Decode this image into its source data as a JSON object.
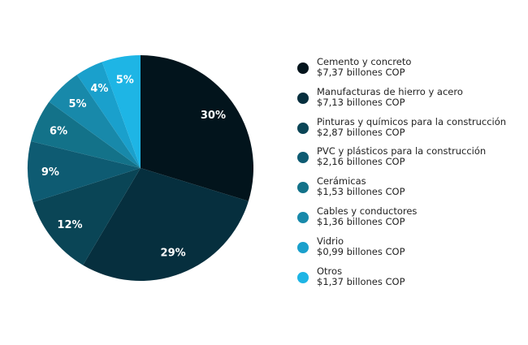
{
  "chart_data": {
    "type": "pie",
    "start": "top",
    "direction": "clockwise",
    "legend_position": "right",
    "slices": [
      {
        "name": "Cemento y concreto",
        "value_label": "$7,37 billones COP",
        "value": 7.37,
        "percent_label": "30%",
        "color": "#02141c"
      },
      {
        "name": "Manufacturas de hierro y acero",
        "value_label": "$7,13 billones COP",
        "value": 7.13,
        "percent_label": "29%",
        "color": "#062f3e"
      },
      {
        "name": "Pinturas y químicos para la construcción",
        "value_label": "$2,87 billones COP",
        "value": 2.87,
        "percent_label": "12%",
        "color": "#0a4556"
      },
      {
        "name": "PVC y plásticos para la construcción",
        "value_label": "$2,16 billones COP",
        "value": 2.16,
        "percent_label": "9%",
        "color": "#0e5b72"
      },
      {
        "name": "Cerámicas",
        "value_label": "$1,53 billones COP",
        "value": 1.53,
        "percent_label": "6%",
        "color": "#137289"
      },
      {
        "name": "Cables y conductores",
        "value_label": "$1,36 billones COP",
        "value": 1.36,
        "percent_label": "5%",
        "color": "#1889aa"
      },
      {
        "name": "Vidrio",
        "value_label": "$0,99 billones COP",
        "value": 0.99,
        "percent_label": "4%",
        "color": "#1aa0cc"
      },
      {
        "name": "Otros",
        "value_label": "$1,37 billones COP",
        "value": 1.37,
        "percent_label": "5%",
        "color": "#1eb5e5"
      }
    ]
  }
}
